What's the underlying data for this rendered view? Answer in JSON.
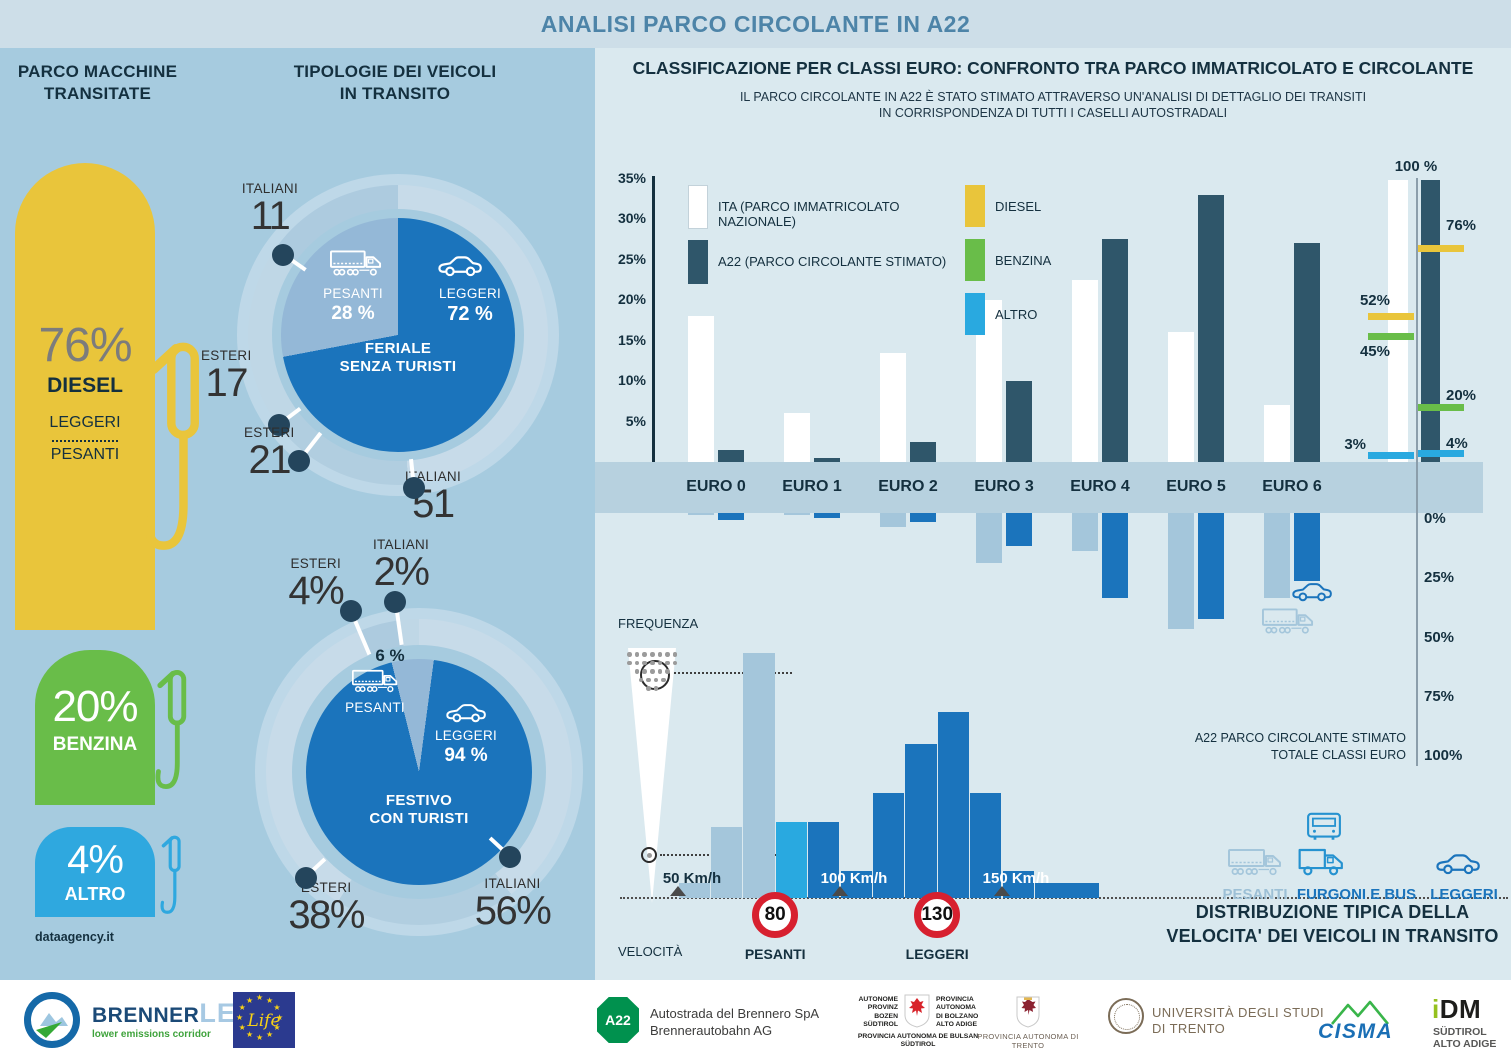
{
  "banner": {
    "title": "ANALISI PARCO CIRCOLANTE IN A22"
  },
  "fuel_panel": {
    "heading1": "PARCO MACCHINE",
    "heading2": "TRANSITATE",
    "diesel": {
      "pct": "76%",
      "name": "DIESEL",
      "sub1": "LEGGERI",
      "sub2": "PESANTI",
      "color": "#e9c53b"
    },
    "benzina": {
      "pct": "20%",
      "name": "BENZINA",
      "color": "#69bd49"
    },
    "altro": {
      "pct": "4%",
      "name": "ALTRO",
      "color": "#2fa8df"
    },
    "credit": "dataagency.it"
  },
  "tipologie": {
    "heading1": "TIPOLOGIE DEI VEICOLI",
    "heading2": "IN TRANSITO",
    "feriale": {
      "pesanti_label": "PESANTI",
      "pesanti_pct": "28 %",
      "leggeri_label": "LEGGERI",
      "leggeri_pct": "72 %",
      "center1": "FERIALE",
      "center2": "SENZA TURISTI"
    },
    "festivo": {
      "pesanti_pct_top": "6 %",
      "pesanti_label": "PESANTI",
      "leggeri_label": "LEGGERI",
      "leggeri_pct": "94 %",
      "center1": "FESTIVO",
      "center2": "CON TURISTI"
    }
  },
  "euro_section": {
    "title": "CLASSIFICAZIONE PER CLASSI EURO: CONFRONTO TRA PARCO IMMATRICOLATO E CIRCOLANTE",
    "subtitle1": "IL PARCO CIRCOLANTE IN A22 È STATO STIMATO ATTRAVERSO UN'ANALISI DI DETTAGLIO DEI TRANSITI",
    "subtitle2": "IN CORRISPONDENZA DI TUTTI I CASELLI AUTOSTRADALI",
    "legend": [
      {
        "label": "ITA (PARCO IMMATRICOLATO NAZIONALE)",
        "color": "#ffffff"
      },
      {
        "label": "A22 (PARCO CIRCOLANTE STIMATO)",
        "color": "#2f566a"
      }
    ],
    "fuel_legend": [
      {
        "label": "DIESEL",
        "color": "#e9c53b"
      },
      {
        "label": "BENZINA",
        "color": "#69bd49"
      },
      {
        "label": "ALTRO",
        "color": "#29a9e0"
      }
    ],
    "total_label": "100 %",
    "down_label1": "A22 PARCO CIRCOLANTE STIMATO",
    "down_label2": "TOTALE CLASSI EURO"
  },
  "speed_section": {
    "freq_label": "FREQUENZA",
    "vel_label": "VELOCITÀ",
    "legend": [
      {
        "label": "PESANTI"
      },
      {
        "label": "FURGONI E BUS"
      },
      {
        "label": "LEGGERI"
      }
    ],
    "title1": "DISTRIBUZIONE TIPICA DELLA",
    "title2": "VELOCITA' DEI VEICOLI IN TRANSITO"
  },
  "footer": {
    "brennerlec": {
      "brenner": "BRENNER",
      "lec": "LEC",
      "tag": "lower emissions corridor"
    },
    "life": "Life",
    "a22": {
      "badge": "A22",
      "line1": "Autostrada del Brennero SpA",
      "line2": "Brennerautobahn AG"
    },
    "bozen": {
      "l1": "AUTONOME",
      "l2": "PROVINZ",
      "l3": "BOZEN",
      "l4": "SÜDTIROL",
      "r1": "PROVINCIA",
      "r2": "AUTONOMA",
      "r3": "DI BOLZANO",
      "r4": "ALTO ADIGE",
      "b1": "PROVINCIA AUTONOMA DE BULSAN",
      "b2": "SÜDTIROL"
    },
    "trento": "PROVINCIA AUTONOMA DI TRENTO",
    "unitn": {
      "l1": "UNIVERSITÀ DEGLI STUDI",
      "l2": "DI TRENTO"
    },
    "cisma": "CISMA",
    "idm": {
      "i": "i",
      "dm": "DM",
      "l1": "SÜDTIROL",
      "l2": "ALTO ADIGE"
    }
  },
  "chart_data": [
    {
      "id": "euro_comparison",
      "type": "bar",
      "title": "CLASSIFICAZIONE PER CLASSI EURO: CONFRONTO TRA PARCO IMMATRICOLATO E CIRCOLANTE",
      "categories": [
        "EURO 0",
        "EURO 1",
        "EURO 2",
        "EURO 3",
        "EURO 4",
        "EURO 5",
        "EURO 6"
      ],
      "series": [
        {
          "name": "ITA (PARCO IMMATRICOLATO NAZIONALE)",
          "color": "#ffffff",
          "values": [
            18,
            6,
            13.5,
            20,
            22.5,
            16,
            7
          ]
        },
        {
          "name": "A22 (PARCO CIRCOLANTE STIMATO)",
          "color": "#2f566a",
          "values": [
            1.5,
            0.5,
            2.5,
            10,
            27.5,
            33,
            27
          ]
        }
      ],
      "unit": "%",
      "yticks": [
        5,
        10,
        15,
        20,
        25,
        30,
        35
      ],
      "ylim": [
        0,
        35
      ],
      "grid": false,
      "legend_position": "top-left"
    },
    {
      "id": "fuel_totals",
      "type": "bar",
      "title": "100 %",
      "note": "fuel composition markers on the two 100% columns",
      "series": [
        {
          "name": "ITA",
          "markers": [
            {
              "label": "DIESEL",
              "value": 52,
              "color": "#e9c53b"
            },
            {
              "label": "BENZINA",
              "value": 45,
              "color": "#69bd49"
            },
            {
              "label": "ALTRO",
              "value": 3,
              "color": "#29a9e0"
            }
          ]
        },
        {
          "name": "A22",
          "markers": [
            {
              "label": "DIESEL",
              "value": 76,
              "color": "#e9c53b"
            },
            {
              "label": "BENZINA",
              "value": 20,
              "color": "#69bd49"
            },
            {
              "label": "ALTRO",
              "value": 4,
              "color": "#29a9e0"
            }
          ]
        }
      ],
      "ylim": [
        0,
        100
      ],
      "unit": "%"
    },
    {
      "id": "a22_per_tipo",
      "type": "bar",
      "direction": "down",
      "title": "A22 PARCO CIRCOLANTE STIMATO TOTALE CLASSI EURO",
      "categories": [
        "EURO 0",
        "EURO 1",
        "EURO 2",
        "EURO 3",
        "EURO 4",
        "EURO 5",
        "EURO 6"
      ],
      "series": [
        {
          "name": "PESANTI",
          "color": "#a4c6db",
          "values": [
            1,
            1,
            6,
            21,
            16,
            49,
            36
          ]
        },
        {
          "name": "LEGGERI",
          "color": "#1b74bc",
          "values": [
            3,
            2,
            4,
            14,
            36,
            45,
            29
          ]
        }
      ],
      "unit": "%",
      "yticks": [
        0,
        25,
        50,
        75,
        100
      ],
      "ylim": [
        0,
        100
      ]
    },
    {
      "id": "tipologia_feriale",
      "type": "pie",
      "title": "FERIALE SENZA TURISTI",
      "slices": [
        {
          "label": "LEGGERI",
          "value": 72,
          "color": "#1b74bc"
        },
        {
          "label": "PESANTI",
          "value": 28,
          "color": "#94b8d7"
        }
      ],
      "ring": [
        {
          "label": "ITALIANI",
          "value": 11,
          "display": "11"
        },
        {
          "label": "ESTERI",
          "value": 17,
          "display": "17"
        },
        {
          "label": "ESTERI",
          "value": 21,
          "display": "21"
        },
        {
          "label": "ITALIANI",
          "value": 51,
          "display": "51"
        }
      ]
    },
    {
      "id": "tipologia_festivo",
      "type": "pie",
      "title": "FESTIVO CON TURISTI",
      "slices": [
        {
          "label": "LEGGERI",
          "value": 94,
          "color": "#1b74bc"
        },
        {
          "label": "PESANTI",
          "value": 6,
          "color": "#94b8d7"
        }
      ],
      "ring": [
        {
          "label": "ESTERI",
          "value": 4,
          "display": "4%"
        },
        {
          "label": "ITALIANI",
          "value": 2,
          "display": "2%"
        },
        {
          "label": "ESTERI",
          "value": 38,
          "display": "38%"
        },
        {
          "label": "ITALIANI",
          "value": 56,
          "display": "56%"
        }
      ]
    },
    {
      "id": "speed_distribution",
      "type": "area",
      "title": "DISTRIBUZIONE TIPICA DELLA VELOCITA' DEI VEICOLI IN TRANSITO",
      "xlabel": "VELOCITÀ",
      "ylabel": "FREQUENZA",
      "x_unit": "Km/h",
      "xticks": [
        50,
        100,
        150
      ],
      "values_note": "bin heights as % of peak frequency",
      "speed_limits": [
        {
          "vehicle": "PESANTI",
          "limit": 80
        },
        {
          "vehicle": "LEGGERI",
          "limit": 130
        }
      ],
      "bins": [
        {
          "from": 50,
          "to": 60,
          "value": 6,
          "group": "PESANTI"
        },
        {
          "from": 60,
          "to": 70,
          "value": 29,
          "group": "PESANTI"
        },
        {
          "from": 70,
          "to": 80,
          "value": 100,
          "group": "PESANTI"
        },
        {
          "from": 80,
          "to": 90,
          "value": 31,
          "group": "FURGONI E BUS"
        },
        {
          "from": 90,
          "to": 100,
          "value": 31,
          "group": "LEGGERI"
        },
        {
          "from": 100,
          "to": 110,
          "value": 11,
          "group": "LEGGERI"
        },
        {
          "from": 110,
          "to": 120,
          "value": 43,
          "group": "LEGGERI"
        },
        {
          "from": 120,
          "to": 130,
          "value": 63,
          "group": "LEGGERI"
        },
        {
          "from": 130,
          "to": 140,
          "value": 76,
          "group": "LEGGERI"
        },
        {
          "from": 140,
          "to": 150,
          "value": 43,
          "group": "LEGGERI"
        },
        {
          "from": 150,
          "to": 160,
          "value": 11,
          "group": "LEGGERI"
        },
        {
          "from": 160,
          "to": 180,
          "value": 6,
          "group": "LEGGERI"
        }
      ]
    }
  ]
}
